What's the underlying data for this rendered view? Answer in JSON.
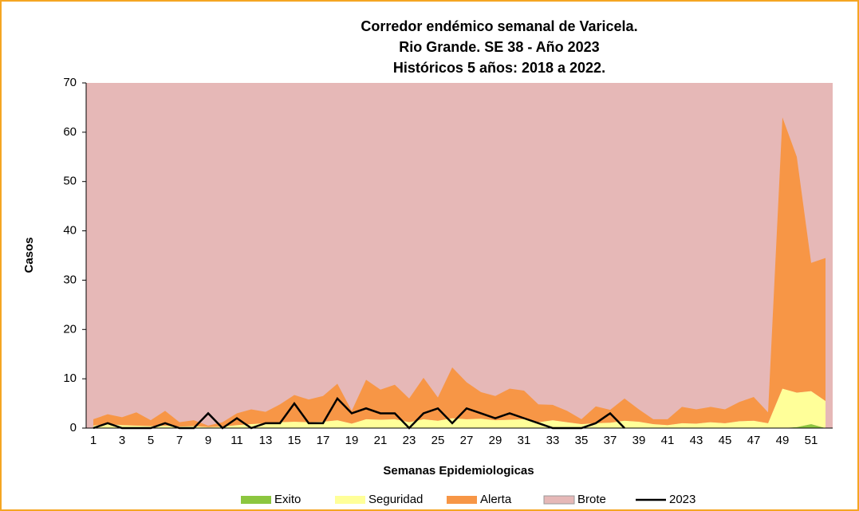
{
  "chart_data": {
    "type": "stacked_area",
    "title": [
      "Corredor endémico semanal de Varicela.",
      "Rio Grande. SE 38 - Año 2023",
      "Históricos 5 años: 2018 a 2022."
    ],
    "x_label": "Semanas Epidemiologicas",
    "y_label": "Casos",
    "categories": [
      1,
      null,
      3,
      null,
      5,
      null,
      7,
      null,
      9,
      null,
      11,
      null,
      13,
      null,
      15,
      null,
      17,
      null,
      19,
      null,
      21,
      null,
      23,
      null,
      25,
      null,
      27,
      null,
      29,
      null,
      31,
      null,
      33,
      null,
      35,
      null,
      37,
      null,
      39,
      null,
      41,
      null,
      43,
      null,
      45,
      null,
      47,
      null,
      49,
      null,
      51,
      null
    ],
    "ylim": [
      0,
      70
    ],
    "yticks": [
      0,
      10,
      20,
      30,
      40,
      50,
      60,
      70
    ],
    "background_series": {
      "name": "Brote",
      "color": "#e6b8b7"
    },
    "series": [
      {
        "name": "Exito",
        "color": "#8cc63f",
        "values": [
          0,
          0,
          0,
          0,
          0,
          0,
          0,
          0,
          0,
          0,
          0,
          0,
          0,
          0,
          0,
          0,
          0,
          0,
          0,
          0,
          0,
          0,
          0,
          0,
          0,
          0,
          0,
          0,
          0,
          0,
          0,
          0,
          0,
          0,
          0,
          0,
          0,
          0,
          0,
          0,
          0,
          0,
          0,
          0,
          0,
          0,
          0,
          0,
          0,
          0.2,
          0.8,
          0
        ]
      },
      {
        "name": "Seguridad",
        "color": "#ffff99",
        "values": [
          0.5,
          0.8,
          0.6,
          0.5,
          0.4,
          0.5,
          0.3,
          0.4,
          0.2,
          0.3,
          0.6,
          0.8,
          1,
          1.2,
          1.3,
          1.2,
          1.3,
          1.6,
          0.9,
          1.8,
          1.7,
          1.8,
          1.2,
          1.8,
          1.5,
          2,
          1.8,
          1.9,
          1.6,
          1.7,
          1.8,
          1.2,
          1.6,
          1.2,
          0.8,
          1,
          1.1,
          1.5,
          1.3,
          0.8,
          0.6,
          1,
          0.9,
          1.2,
          1,
          1.4,
          1.5,
          1,
          8,
          7,
          6.7,
          5.5
        ]
      },
      {
        "name": "Alerta",
        "color": "#f79646",
        "values": [
          1.3,
          2,
          1.6,
          2.7,
          1.2,
          3,
          0.9,
          1.2,
          0.3,
          0.9,
          2.4,
          3,
          2.3,
          3.6,
          5.4,
          4.6,
          5.2,
          7.4,
          2.6,
          8,
          6.1,
          7,
          4.8,
          8.4,
          4.7,
          10.3,
          7.5,
          5.4,
          4.9,
          6.3,
          5.8,
          3.6,
          3.1,
          2.3,
          1,
          3.4,
          2.6,
          4.5,
          2.5,
          1,
          1.2,
          3.3,
          2.9,
          3.1,
          2.8,
          3.9,
          4.8,
          2.2,
          55,
          47.8,
          26,
          29
        ]
      }
    ],
    "line_series": {
      "name": "2023",
      "color": "#000000",
      "values": [
        0,
        1,
        0,
        0,
        0,
        1,
        0,
        0,
        3,
        0,
        2,
        0,
        1,
        1,
        5,
        1,
        1,
        6,
        3,
        4,
        3,
        3,
        0,
        3,
        4,
        1,
        4,
        3,
        2,
        3,
        2,
        1,
        0,
        0,
        0,
        1,
        3,
        0,
        null,
        null,
        null,
        null,
        null,
        null,
        null,
        null,
        null,
        null,
        null,
        null,
        null,
        null
      ]
    }
  }
}
